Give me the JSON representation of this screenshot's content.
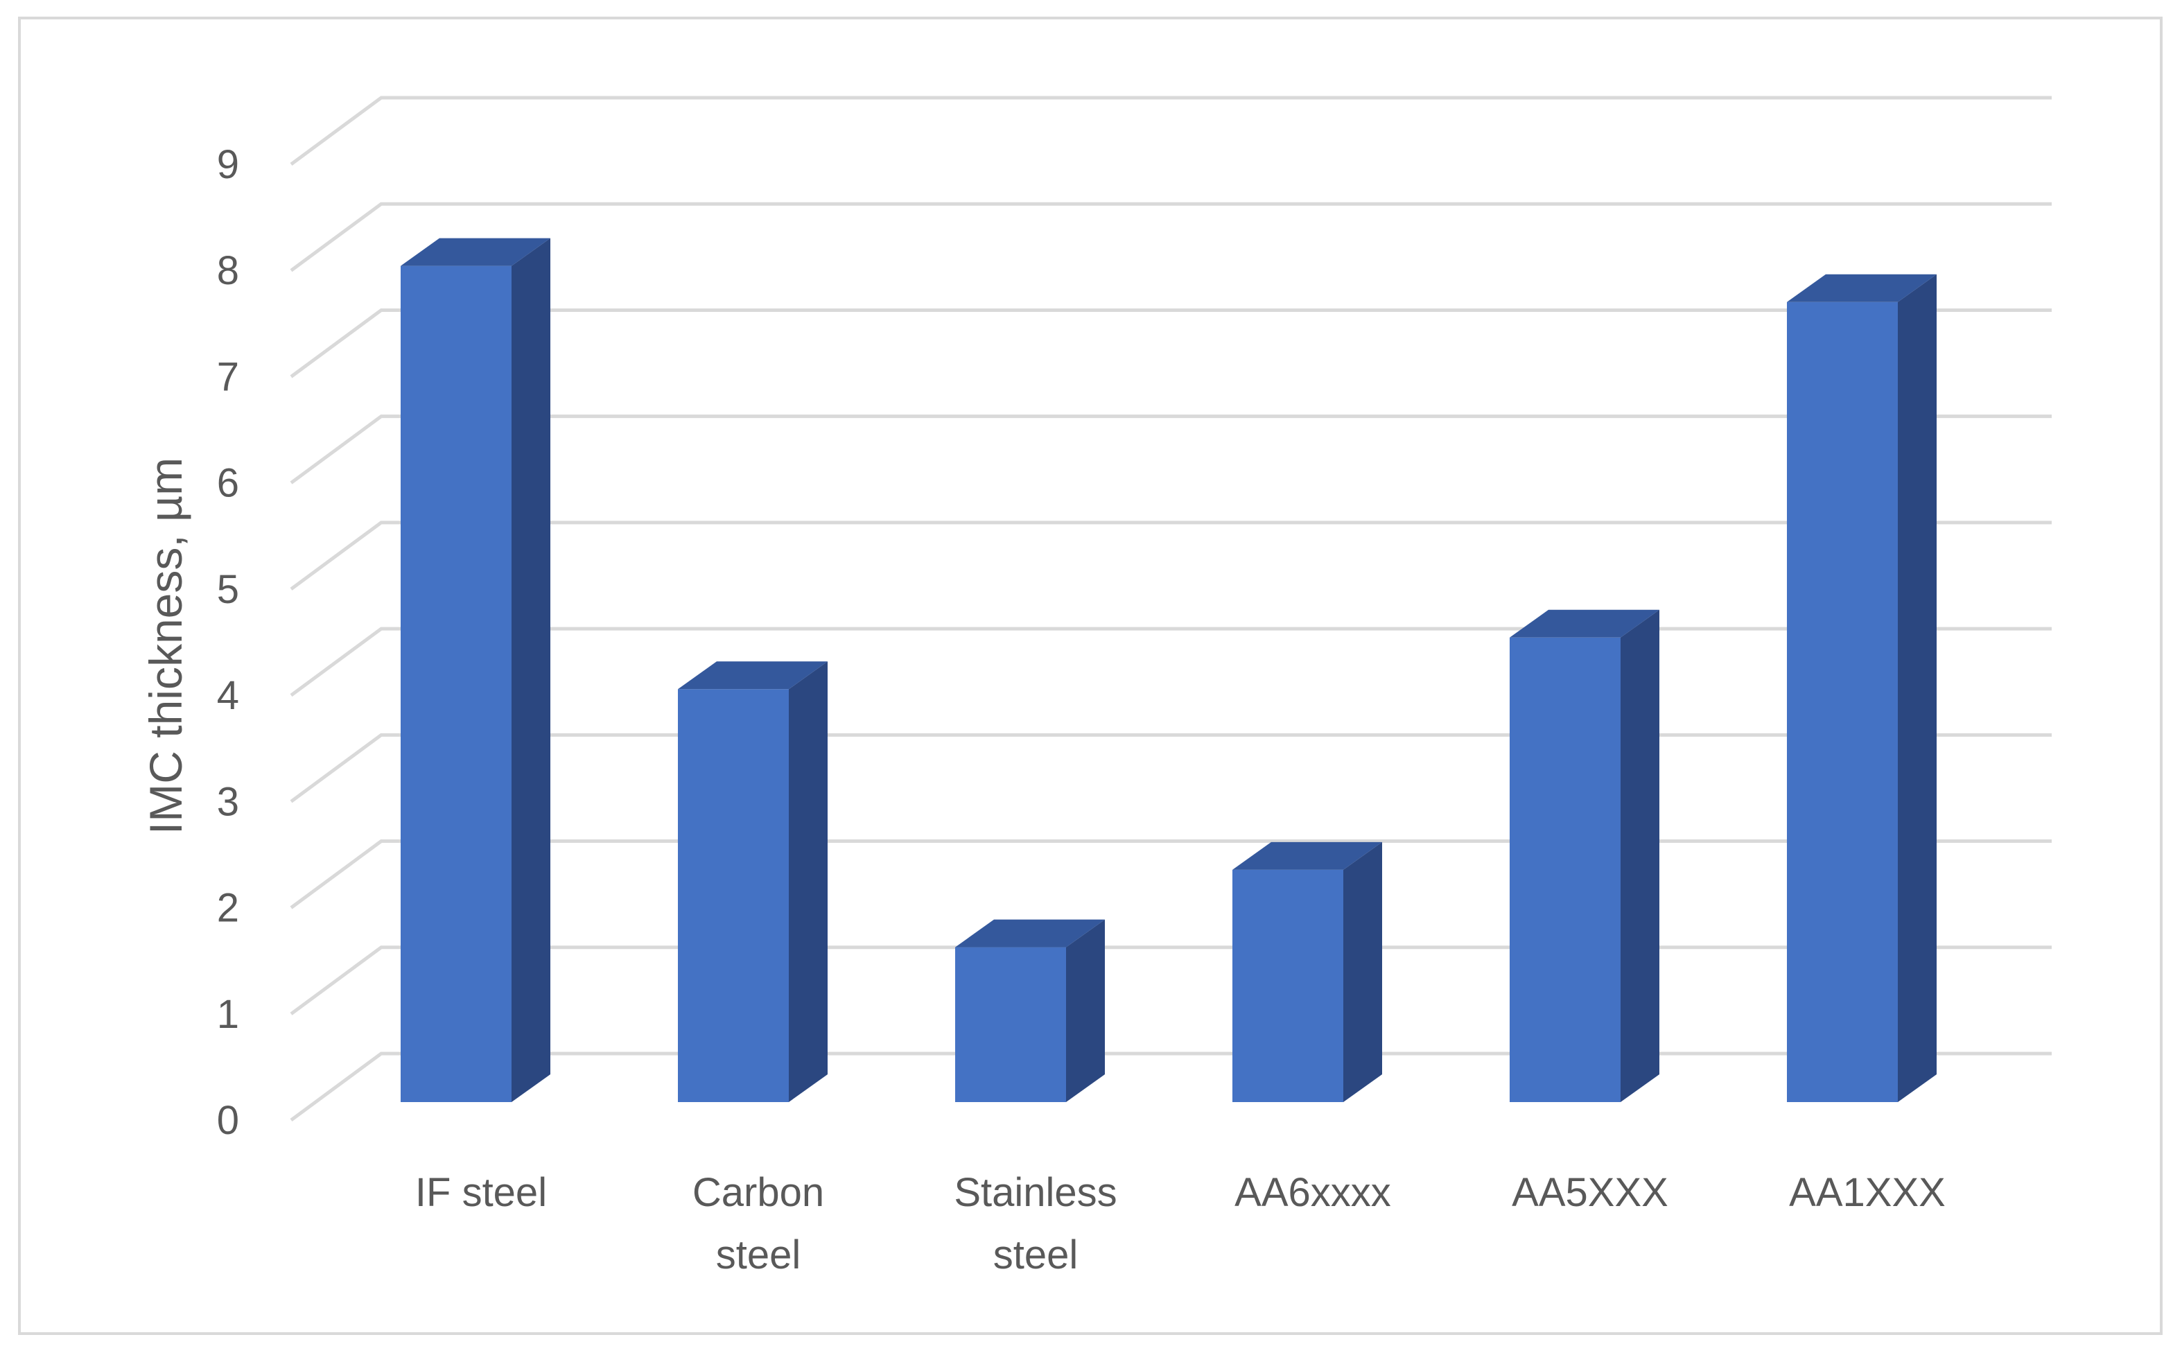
{
  "chart_data": {
    "type": "bar",
    "style": "3d-column",
    "categories": [
      "IF steel",
      "Carbon steel",
      "Stainless steel",
      "AA6xxxx",
      "AA5XXX",
      "AA1XXX"
    ],
    "category_lines": [
      [
        "IF steel"
      ],
      [
        "Carbon",
        "steel"
      ],
      [
        "Stainless",
        "steel"
      ],
      [
        "AA6xxxx"
      ],
      [
        "AA5XXX"
      ],
      [
        "AA1XXX"
      ]
    ],
    "values": [
      8.1,
      4.0,
      1.5,
      2.25,
      4.5,
      7.75
    ],
    "ylabel": "IMC thickness, µm",
    "ylim": [
      0,
      9
    ],
    "yticks": [
      "0",
      "1",
      "2",
      "3",
      "4",
      "5",
      "6",
      "7",
      "8",
      "9"
    ],
    "grid": true,
    "legend": "none",
    "colors": {
      "front": "#4472c4",
      "side": "#2b4780",
      "top": "#34589c",
      "grid": "#d9d9d9",
      "text": "#595959"
    }
  }
}
